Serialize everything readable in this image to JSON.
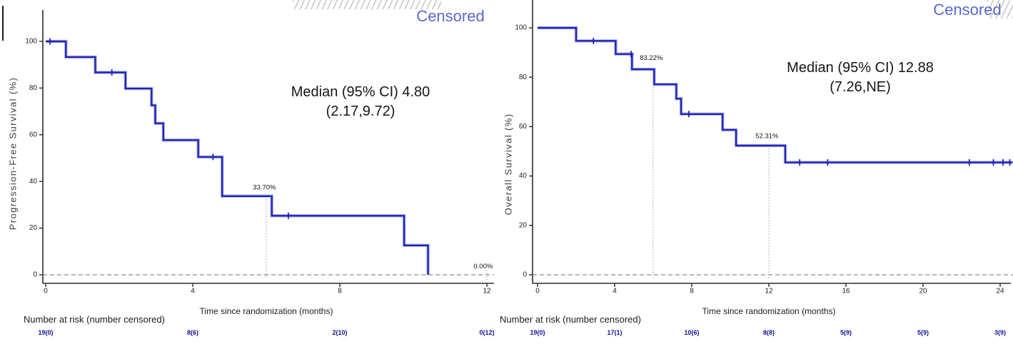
{
  "colors": {
    "curve": "#1f24b4",
    "curve_halo": "#b9bdf0",
    "censored_label": "#5968c9",
    "risk_number": "#10109c",
    "axis": "#2b2b2b",
    "dashed_zero_line": "#8a8a8a",
    "dotted_landmark_line": "#999999",
    "text": "#1b1b1b"
  },
  "charts": [
    {
      "censored": "Censored",
      "median_line1": "Median (95% CI) 4.80",
      "median_line2": "(2.17,9.72)",
      "ylabel": "Progression-Free Survival (%)",
      "xlabel": "Time since randomization (months)",
      "risk_header": "Number at risk (number censored)",
      "chart_data": {
        "type": "line",
        "subtype": "kaplan-meier-step",
        "xlim": [
          0,
          12.2
        ],
        "ylim": [
          0,
          100
        ],
        "x_ticks": [
          0,
          4,
          8,
          12
        ],
        "y_ticks": [
          0,
          20,
          40,
          60,
          80,
          100
        ],
        "steps": [
          [
            0,
            100
          ],
          [
            0.55,
            100
          ],
          [
            0.55,
            93.3
          ],
          [
            1.35,
            93.3
          ],
          [
            1.35,
            86.7
          ],
          [
            2.17,
            86.7
          ],
          [
            2.17,
            79.8
          ],
          [
            2.88,
            79.8
          ],
          [
            2.88,
            72.6
          ],
          [
            2.98,
            72.6
          ],
          [
            2.98,
            64.9
          ],
          [
            3.2,
            64.9
          ],
          [
            3.2,
            57.7
          ],
          [
            4.15,
            57.7
          ],
          [
            4.15,
            50.5
          ],
          [
            4.8,
            50.5
          ],
          [
            4.8,
            33.7
          ],
          [
            6.15,
            33.7
          ],
          [
            6.15,
            25.3
          ],
          [
            9.75,
            25.3
          ],
          [
            9.75,
            12.6
          ],
          [
            10.4,
            12.6
          ],
          [
            10.4,
            0
          ]
        ],
        "censor_marks": [
          [
            0.12,
            100
          ],
          [
            1.8,
            86.7
          ],
          [
            4.55,
            50.5
          ],
          [
            6.6,
            25.3
          ]
        ],
        "landmarks": [
          {
            "x": 6,
            "label": "33.70%",
            "line_top": 33.7,
            "line_bottom": -1.5,
            "label_cx": 5.95,
            "label_v": 36.5
          },
          {
            "x": 12,
            "label": "0.00%",
            "line_top": 2,
            "line_bottom": -3,
            "label_cx": 11.9,
            "label_v": 2.8
          }
        ],
        "risk_row": {
          "times": [
            0,
            4,
            8,
            12
          ],
          "values": [
            "19(0)",
            "8(6)",
            "2(10)",
            "0(12)"
          ]
        }
      }
    },
    {
      "censored": "Censored",
      "median_line1": "Median (95% CI) 12.88",
      "median_line2": "(7.26,NE)",
      "ylabel": "Overall Survival (%)",
      "xlabel": "Time since randomization (months)",
      "risk_header": "Number at risk (number censored)",
      "chart_data": {
        "type": "line",
        "subtype": "kaplan-meier-step",
        "xlim": [
          0,
          24.7
        ],
        "ylim": [
          0,
          100
        ],
        "x_ticks": [
          0,
          4,
          8,
          12,
          16,
          20,
          24
        ],
        "y_ticks": [
          0,
          20,
          40,
          60,
          80,
          100
        ],
        "steps": [
          [
            0,
            100
          ],
          [
            2.0,
            100
          ],
          [
            2.0,
            94.7
          ],
          [
            4.05,
            94.7
          ],
          [
            4.05,
            89.4
          ],
          [
            4.9,
            89.4
          ],
          [
            4.9,
            83.2
          ],
          [
            6.05,
            83.2
          ],
          [
            6.05,
            77.1
          ],
          [
            7.2,
            77.1
          ],
          [
            7.2,
            71.3
          ],
          [
            7.45,
            71.3
          ],
          [
            7.45,
            65.1
          ],
          [
            9.6,
            65.1
          ],
          [
            9.6,
            58.7
          ],
          [
            10.3,
            58.7
          ],
          [
            10.3,
            52.3
          ],
          [
            12.85,
            52.3
          ],
          [
            12.85,
            45.5
          ],
          [
            24.65,
            45.5
          ]
        ],
        "censor_marks": [
          [
            2.9,
            94.7
          ],
          [
            4.85,
            89.4
          ],
          [
            7.85,
            65.1
          ],
          [
            13.6,
            45.5
          ],
          [
            15.05,
            45.5
          ],
          [
            22.4,
            45.5
          ],
          [
            23.65,
            45.5
          ],
          [
            24.15,
            45.5
          ],
          [
            24.5,
            45.5
          ]
        ],
        "landmarks": [
          {
            "x": 6,
            "label": "83.22%",
            "line_top": 83.2,
            "line_bottom": -1.5,
            "label_cx": 5.9,
            "label_v": 87
          },
          {
            "x": 12,
            "label": "52.31%",
            "line_top": 52.3,
            "line_bottom": -1.5,
            "label_cx": 11.9,
            "label_v": 55.4
          }
        ],
        "risk_row": {
          "times": [
            0,
            4,
            8,
            12,
            16,
            20,
            24
          ],
          "values": [
            "19(0)",
            "17(1)",
            "10(6)",
            "8(8)",
            "5(9)",
            "5(9)",
            "3(9)"
          ]
        }
      }
    }
  ]
}
